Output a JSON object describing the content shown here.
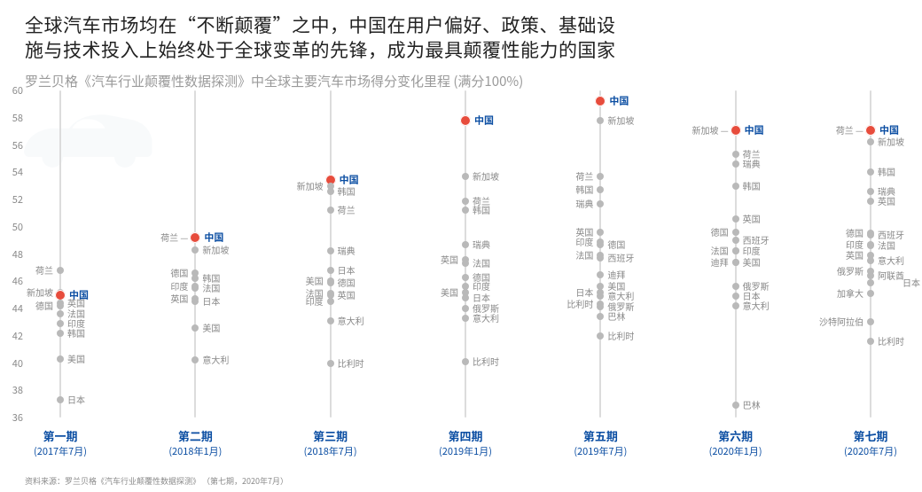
{
  "title_line1": "全球汽车市场均在“不断颠覆”之中，中国在用户偏好、政策、基础设",
  "title_line2": "施与技术投入上始终处于全球变革的先锋，成为最具颠覆性能力的国家",
  "subtitle": "罗兰贝格《汽车行业颠覆性数据探测》中全球主要汽车市场得分变化里程 (满分100%)",
  "footnote": "资料来源：罗兰贝格《汽车行业颠覆性数据探测》 （第七期，2020年7月）",
  "chart": {
    "type": "strip-scatter",
    "y_min": 36,
    "y_max": 60,
    "y_tick_step": 2,
    "axis_label_color": "#888888",
    "axis_label_fontsize": 11,
    "data_label_fontsize": 10,
    "data_label_color": "#888888",
    "point_color": "#b9b9b9",
    "highlight_point_color": "#e74c3c",
    "highlight_label_color": "#0a4da2",
    "period_line_color": "#dcdcdc",
    "period_label_color": "#0a4da2",
    "background_color": "#ffffff",
    "car_silhouette_color": "#c9d7e6",
    "periods": [
      {
        "name": "第一期",
        "date": "(2017年7月)",
        "points": [
          {
            "label": "荷兰",
            "value": 46.8,
            "side": "left"
          },
          {
            "label": "新加坡",
            "value": 45.2,
            "side": "left"
          },
          {
            "label": "中国",
            "value": 45.0,
            "highlight": true,
            "side": "right"
          },
          {
            "label": "德国",
            "value": 44.2,
            "side": "left"
          },
          {
            "label": "英国",
            "value": 44.4,
            "side": "right"
          },
          {
            "label": "法国",
            "value": 43.6,
            "side": "right"
          },
          {
            "label": "印度",
            "value": 42.9,
            "side": "right"
          },
          {
            "label": "韩国",
            "value": 42.2,
            "side": "right"
          },
          {
            "label": "美国",
            "value": 40.3,
            "side": "right"
          },
          {
            "label": "日本",
            "value": 37.3,
            "side": "right"
          }
        ]
      },
      {
        "name": "第二期",
        "date": "(2018年1月)",
        "points": [
          {
            "label": "荷兰 —",
            "value": 49.2,
            "side": "left",
            "dash_right": true
          },
          {
            "label": "中国",
            "value": 49.2,
            "highlight": true,
            "side": "right"
          },
          {
            "label": "新加坡",
            "value": 48.3,
            "side": "right"
          },
          {
            "label": "德国",
            "value": 46.6,
            "side": "left"
          },
          {
            "label": "印度",
            "value": 45.6,
            "side": "left"
          },
          {
            "label": "韩国",
            "value": 46.2,
            "side": "right"
          },
          {
            "label": "法国",
            "value": 45.5,
            "side": "right"
          },
          {
            "label": "英国",
            "value": 44.7,
            "side": "left"
          },
          {
            "label": "日本",
            "value": 44.5,
            "side": "right"
          },
          {
            "label": "美国",
            "value": 42.6,
            "side": "right"
          },
          {
            "label": "意大利",
            "value": 40.2,
            "side": "right"
          }
        ]
      },
      {
        "name": "第三期",
        "date": "(2018年7月)",
        "points": [
          {
            "label": "中国",
            "value": 53.4,
            "highlight": true,
            "side": "right"
          },
          {
            "label": "新加坡",
            "value": 53.0,
            "side": "left"
          },
          {
            "label": "韩国",
            "value": 52.6,
            "side": "right"
          },
          {
            "label": "荷兰",
            "value": 51.2,
            "side": "right"
          },
          {
            "label": "瑞典",
            "value": 48.2,
            "side": "right"
          },
          {
            "label": "日本",
            "value": 46.8,
            "side": "right"
          },
          {
            "label": "美国",
            "value": 46.0,
            "side": "left"
          },
          {
            "label": "德国",
            "value": 45.9,
            "side": "right"
          },
          {
            "label": "法国",
            "value": 45.1,
            "side": "left"
          },
          {
            "label": "印度",
            "value": 44.5,
            "side": "left"
          },
          {
            "label": "英国",
            "value": 45.0,
            "side": "right"
          },
          {
            "label": "意大利",
            "value": 43.1,
            "side": "right"
          },
          {
            "label": "比利时",
            "value": 40.0,
            "side": "right"
          }
        ]
      },
      {
        "name": "第四期",
        "date": "(2019年1月)",
        "points": [
          {
            "label": "中国",
            "value": 57.8,
            "highlight": true,
            "side": "right"
          },
          {
            "label": "新加坡",
            "value": 53.7,
            "side": "right"
          },
          {
            "label": "荷兰",
            "value": 51.9,
            "side": "right"
          },
          {
            "label": "韩国",
            "value": 51.2,
            "side": "right"
          },
          {
            "label": "瑞典",
            "value": 48.7,
            "side": "right"
          },
          {
            "label": "英国",
            "value": 47.6,
            "side": "left"
          },
          {
            "label": "法国",
            "value": 47.3,
            "side": "right"
          },
          {
            "label": "德国",
            "value": 46.3,
            "side": "right"
          },
          {
            "label": "美国",
            "value": 45.2,
            "side": "left"
          },
          {
            "label": "印度",
            "value": 45.6,
            "side": "right"
          },
          {
            "label": "日本",
            "value": 44.8,
            "side": "right"
          },
          {
            "label": "俄罗斯",
            "value": 44.0,
            "side": "right"
          },
          {
            "label": "意大利",
            "value": 43.3,
            "side": "right"
          },
          {
            "label": "比利时",
            "value": 40.1,
            "side": "right"
          }
        ]
      },
      {
        "name": "第五期",
        "date": "(2019年7月)",
        "points": [
          {
            "label": "中国",
            "value": 59.2,
            "highlight": true,
            "side": "right"
          },
          {
            "label": "新加坡",
            "value": 57.8,
            "side": "right"
          },
          {
            "label": "荷兰",
            "value": 53.7,
            "side": "left"
          },
          {
            "label": "韩国",
            "value": 52.7,
            "side": "left"
          },
          {
            "label": "瑞典",
            "value": 51.7,
            "side": "left"
          },
          {
            "label": "英国",
            "value": 49.6,
            "side": "left"
          },
          {
            "label": "印度",
            "value": 48.9,
            "side": "left"
          },
          {
            "label": "德国",
            "value": 48.7,
            "side": "right"
          },
          {
            "label": "法国",
            "value": 47.9,
            "side": "left"
          },
          {
            "label": "西班牙",
            "value": 47.7,
            "side": "right"
          },
          {
            "label": "迪拜",
            "value": 46.5,
            "side": "right"
          },
          {
            "label": "日本",
            "value": 45.2,
            "side": "left"
          },
          {
            "label": "美国",
            "value": 45.6,
            "side": "right"
          },
          {
            "label": "意大利",
            "value": 44.9,
            "side": "right"
          },
          {
            "label": "比利时",
            "value": 44.3,
            "side": "left"
          },
          {
            "label": "俄罗斯",
            "value": 44.1,
            "side": "right"
          },
          {
            "label": "巴林",
            "value": 43.4,
            "side": "right"
          },
          {
            "label": "比利时",
            "value": 42.0,
            "side": "right"
          }
        ]
      },
      {
        "name": "第六期",
        "date": "(2020年1月)",
        "points": [
          {
            "label": "新加坡 —",
            "value": 57.1,
            "side": "left",
            "dash_right": true
          },
          {
            "label": "中国",
            "value": 57.1,
            "highlight": true,
            "side": "right"
          },
          {
            "label": "荷兰",
            "value": 55.3,
            "side": "right"
          },
          {
            "label": "瑞典",
            "value": 54.6,
            "side": "right"
          },
          {
            "label": "韩国",
            "value": 53.0,
            "side": "right"
          },
          {
            "label": "英国",
            "value": 50.6,
            "side": "right"
          },
          {
            "label": "德国",
            "value": 49.6,
            "side": "left"
          },
          {
            "label": "西班牙",
            "value": 49.0,
            "side": "right"
          },
          {
            "label": "法国",
            "value": 48.2,
            "side": "left"
          },
          {
            "label": "印度",
            "value": 48.2,
            "side": "right"
          },
          {
            "label": "迪拜",
            "value": 47.4,
            "side": "left"
          },
          {
            "label": "美国",
            "value": 47.4,
            "side": "right"
          },
          {
            "label": "俄罗斯",
            "value": 45.6,
            "side": "right"
          },
          {
            "label": "日本",
            "value": 44.9,
            "side": "right"
          },
          {
            "label": "意大利",
            "value": 44.2,
            "side": "right"
          },
          {
            "label": "巴林",
            "value": 36.9,
            "side": "right"
          }
        ]
      },
      {
        "name": "第七期",
        "date": "(2020年7月)",
        "points": [
          {
            "label": "荷兰 —",
            "value": 57.1,
            "side": "left",
            "dash_right": true
          },
          {
            "label": "中国",
            "value": 57.1,
            "highlight": true,
            "side": "right"
          },
          {
            "label": "新加坡",
            "value": 56.2,
            "side": "right"
          },
          {
            "label": "韩国",
            "value": 54.0,
            "side": "right"
          },
          {
            "label": "瑞典",
            "value": 52.6,
            "side": "right"
          },
          {
            "label": "英国",
            "value": 51.9,
            "side": "right"
          },
          {
            "label": "德国",
            "value": 49.5,
            "side": "left"
          },
          {
            "label": "西班牙",
            "value": 49.4,
            "side": "right"
          },
          {
            "label": "印度",
            "value": 48.7,
            "side": "left"
          },
          {
            "label": "法国",
            "value": 48.6,
            "side": "right"
          },
          {
            "label": "英国",
            "value": 47.9,
            "side": "left"
          },
          {
            "label": "意大利",
            "value": 47.5,
            "side": "right"
          },
          {
            "label": "俄罗斯",
            "value": 46.7,
            "side": "left"
          },
          {
            "label": "阿联酋",
            "value": 46.4,
            "side": "right"
          },
          {
            "label": "日本",
            "value": 45.9,
            "side": "far-right"
          },
          {
            "label": "加拿大",
            "value": 45.1,
            "side": "left"
          },
          {
            "label": "沙特阿拉伯",
            "value": 43.0,
            "side": "left"
          },
          {
            "label": "比利时",
            "value": 41.6,
            "side": "right"
          }
        ]
      }
    ]
  }
}
